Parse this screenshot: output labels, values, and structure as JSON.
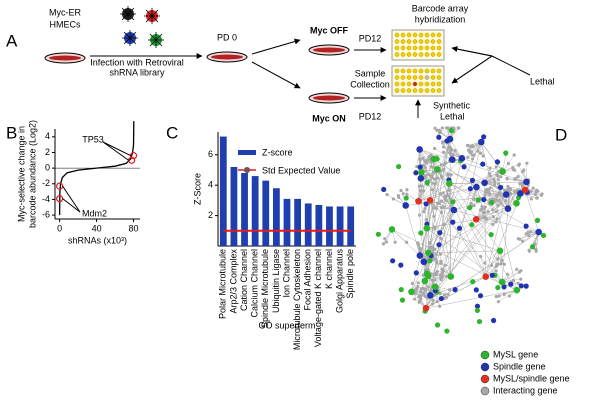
{
  "panel_labels": [
    "A",
    "B",
    "C",
    "D"
  ],
  "diagram_a": {
    "cell_line": [
      "Myc-ER",
      "HMECs"
    ],
    "infection": [
      "Infection with Retroviral",
      "shRNA library"
    ],
    "pd0": "PD 0",
    "myc_off": "Myc OFF",
    "myc_on": "Myc ON",
    "pd12_top": "PD12",
    "pd12_bottom": "PD12",
    "sample_collection": [
      "Sample",
      "Collection"
    ],
    "barcode": [
      "Barcode array",
      "hybridization"
    ],
    "lethal": "Lethal",
    "synthetic_lethal": [
      "Synthetic",
      "Lethal"
    ]
  },
  "chart_data": [
    {
      "type": "line",
      "y_label": [
        "Myc-selective change in",
        "barcode abundance (Log2)"
      ],
      "x_label": "shRNAs (x10³)",
      "x": [
        0,
        0.3,
        1,
        3,
        8,
        20,
        40,
        60,
        72,
        77,
        79,
        80,
        80.3
      ],
      "series": [
        {
          "color": "#000000",
          "values": [
            -6,
            -3,
            -2,
            -1.2,
            -0.6,
            -0.25,
            0,
            0.25,
            0.6,
            1.2,
            2,
            3,
            6
          ]
        }
      ],
      "highlights": {
        "color": "#e41a1c",
        "x": [
          0,
          0,
          78,
          80
        ],
        "y": [
          -2.3,
          -3.9,
          1,
          1.6
        ]
      },
      "annotations": [
        "TP53",
        "Mdm2"
      ],
      "xlim": [
        -5,
        87
      ],
      "ylim": [
        -6.5,
        5
      ],
      "xticks": [
        0,
        40,
        80
      ],
      "yticks": [
        -6,
        -4,
        -2,
        0,
        2,
        4
      ]
    },
    {
      "type": "bar",
      "y_label": "Z-Score",
      "x_label": "GO superterm",
      "categories": [
        "Polar Microtubule",
        "Arp2/3 Complex",
        "Cation Channel",
        "Calcium Channel",
        "Spindle Microtubule",
        "Ubiquitin Ligase",
        "Ion Channel",
        "Microtubule Cytoskeleton",
        "Focal Adhesion",
        "Voltage-gated K channel",
        "K channel",
        "Golgi Apparatus",
        "Spindle pole"
      ],
      "series": [
        {
          "name": "Z-score",
          "color": "#1f3faf",
          "values": [
            7.2,
            5.2,
            4.8,
            4.6,
            4.3,
            3.8,
            3.1,
            3.1,
            2.8,
            2.7,
            2.6,
            2.6,
            2.6
          ]
        },
        {
          "name": "Std Expected Value",
          "color": "#e41a1c",
          "values": [
            1,
            1,
            1,
            1,
            1,
            1,
            1,
            1,
            1,
            1,
            1,
            1,
            1
          ]
        }
      ],
      "ylim": [
        0,
        7.5
      ],
      "yticks": [
        2,
        4,
        6
      ]
    }
  ],
  "network_legend": [
    {
      "label": "MySL gene",
      "color": "#2db52d"
    },
    {
      "label": "Spindle gene",
      "color": "#2233b0"
    },
    {
      "label": "MySL/spindle gene",
      "color": "#e0301e"
    },
    {
      "label": "Interacting gene",
      "color": "#a8a8a8"
    }
  ]
}
